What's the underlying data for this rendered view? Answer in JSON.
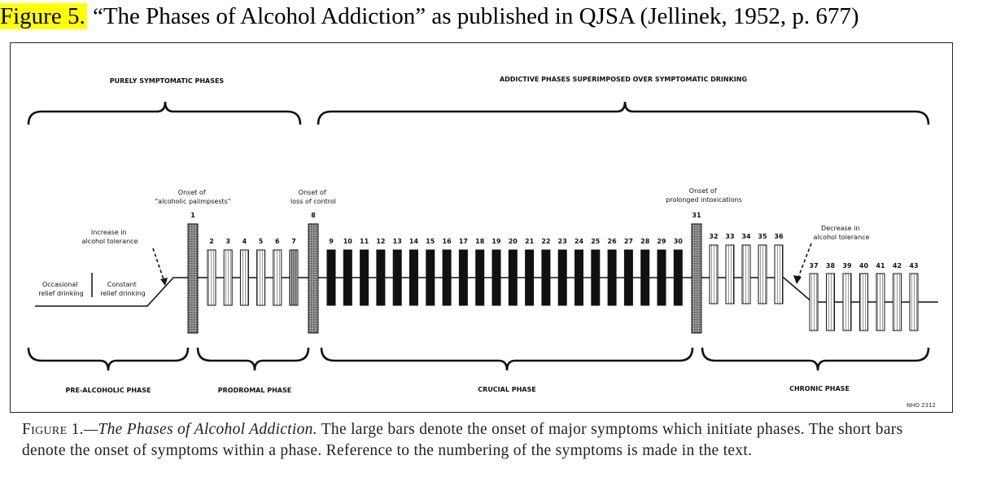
{
  "header": {
    "figure_label": "Figure 5.",
    "title": " “The Phases of Alcohol Addiction” as published in QJSA (Jellinek, 1952, p. 677)"
  },
  "diagram": {
    "top_brackets": [
      {
        "label": "PURELY SYMPTOMATIC PHASES"
      },
      {
        "label": "ADDICTIVE PHASES SUPERIMPOSED OVER SYMPTOMATIC DRINKING"
      }
    ],
    "bottom_brackets": [
      {
        "label": "PRE-ALCOHOLIC PHASE"
      },
      {
        "label": "PRODROMAL PHASE"
      },
      {
        "label": "CRUCIAL PHASE"
      },
      {
        "label": "CHRONIC PHASE"
      }
    ],
    "onsets": [
      {
        "lines": [
          "Onset of",
          "“alcoholic palimpsests”"
        ],
        "number": "1"
      },
      {
        "lines": [
          "Onset of",
          "loss of control"
        ],
        "number": "8"
      },
      {
        "lines": [
          "Onset of",
          "prolonged  intoxications"
        ],
        "number": "31"
      }
    ],
    "annotations": {
      "increase_tolerance": [
        "Increase in",
        "alcohol tolerance"
      ],
      "decrease_tolerance": [
        "Decrease in",
        "alcohol tolerance"
      ],
      "occasional": [
        "Occasional",
        "relief drinking"
      ],
      "constant": [
        "Constant",
        "relief drinking"
      ]
    },
    "stamp": "NHO 2312",
    "prodromal_symptoms": [
      "2",
      "3",
      "4",
      "5",
      "6",
      "7"
    ],
    "crucial_symptoms": [
      "9",
      "10",
      "11",
      "12",
      "13",
      "14",
      "15",
      "16",
      "17",
      "18",
      "19",
      "20",
      "21",
      "22",
      "23",
      "24",
      "25",
      "26",
      "27",
      "28",
      "29",
      "30"
    ],
    "chronic_upper_symptoms": [
      "32",
      "33",
      "34",
      "35",
      "36"
    ],
    "chronic_lower_symptoms": [
      "37",
      "38",
      "39",
      "40",
      "41",
      "42",
      "43"
    ]
  },
  "caption": {
    "figure_word": "Figure 1.",
    "dash": "—",
    "title": "The Phases of Alcohol Addiction.",
    "text": " The large bars denote the onset of major symptoms which initiate phases. The short bars denote the onset of symptoms within a phase. Reference to the numbering of the symptoms is made in the text."
  }
}
